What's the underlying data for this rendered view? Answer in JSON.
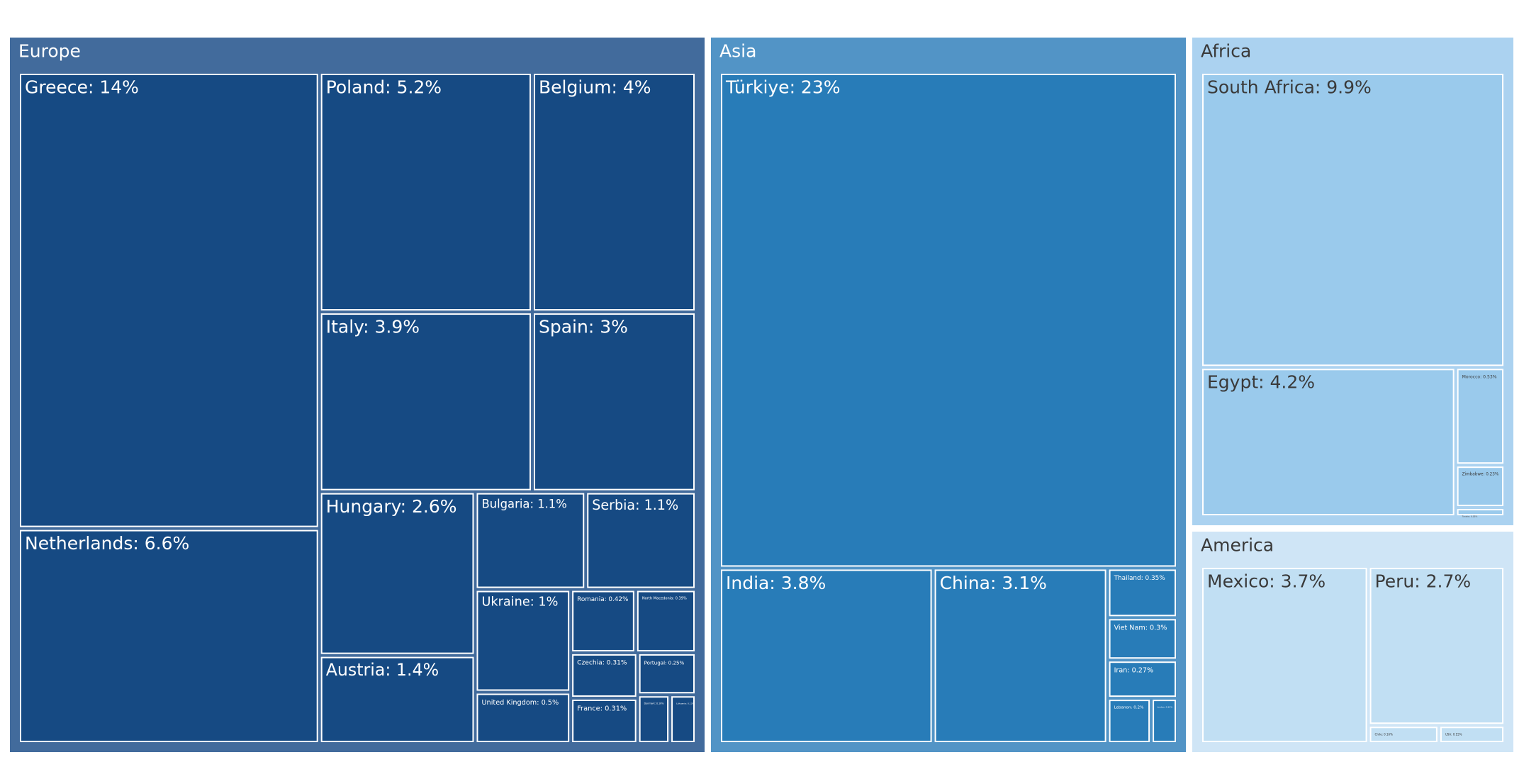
{
  "chart_data": {
    "type": "treemap",
    "title": "",
    "groups": [
      {
        "name": "Europe",
        "color": "#426b9c",
        "leaf_color": "#164a83",
        "text_color": "#ffffff",
        "items": [
          {
            "label": "Greece: 14%",
            "value": 14
          },
          {
            "label": "Netherlands: 6.6%",
            "value": 6.6
          },
          {
            "label": "Poland: 5.2%",
            "value": 5.2
          },
          {
            "label": "Belgium: 4%",
            "value": 4
          },
          {
            "label": "Italy: 3.9%",
            "value": 3.9
          },
          {
            "label": "Spain: 3%",
            "value": 3
          },
          {
            "label": "Hungary: 2.6%",
            "value": 2.6
          },
          {
            "label": "Austria: 1.4%",
            "value": 1.4
          },
          {
            "label": "Bulgaria: 1.1%",
            "value": 1.1
          },
          {
            "label": "Serbia: 1.1%",
            "value": 1.1
          },
          {
            "label": "Ukraine: 1%",
            "value": 1
          },
          {
            "label": "United Kingdom: 0.5%",
            "value": 0.5
          },
          {
            "label": "Romania: 0.42%",
            "value": 0.42
          },
          {
            "label": "North Macedonia: 0.39%",
            "value": 0.39
          },
          {
            "label": "Czechia: 0.31%",
            "value": 0.31
          },
          {
            "label": "France: 0.31%",
            "value": 0.31
          },
          {
            "label": "Portugal: 0.25%",
            "value": 0.25
          },
          {
            "label": "Denmark: 0.16%",
            "value": 0.16
          },
          {
            "label": "Lithuania: 0.13%",
            "value": 0.13
          }
        ]
      },
      {
        "name": "Asia",
        "color": "#5294c6",
        "leaf_color": "#287cb8",
        "text_color": "#ffffff",
        "items": [
          {
            "label": "Türkiye: 23%",
            "value": 23
          },
          {
            "label": "India: 3.8%",
            "value": 3.8
          },
          {
            "label": "China: 3.1%",
            "value": 3.1
          },
          {
            "label": "Thailand: 0.35%",
            "value": 0.35
          },
          {
            "label": "Viet Nam: 0.3%",
            "value": 0.3
          },
          {
            "label": "Iran: 0.27%",
            "value": 0.27
          },
          {
            "label": "Lebanon: 0.2%",
            "value": 0.2
          },
          {
            "label": "Jordan: 0.12%",
            "value": 0.12
          }
        ]
      },
      {
        "name": "Africa",
        "color": "#abd2f0",
        "leaf_color": "#9acaec",
        "text_color": "#3a3a3a",
        "items": [
          {
            "label": "South Africa: 9.9%",
            "value": 9.9
          },
          {
            "label": "Egypt: 4.2%",
            "value": 4.2
          },
          {
            "label": "Morocco: 0.53%",
            "value": 0.53
          },
          {
            "label": "Zimbabwe: 0.23%",
            "value": 0.23
          },
          {
            "label": "Tunisia: 0.05%",
            "value": 0.05
          }
        ]
      },
      {
        "name": "America",
        "color": "#cfe5f6",
        "leaf_color": "#c1dff3",
        "text_color": "#3a3a3a",
        "items": [
          {
            "label": "Mexico: 3.7%",
            "value": 3.7
          },
          {
            "label": "Peru: 2.7%",
            "value": 2.7
          },
          {
            "label": "Chile: 0.16%",
            "value": 0.16
          },
          {
            "label": "USA: 0.15%",
            "value": 0.15
          }
        ]
      }
    ]
  }
}
